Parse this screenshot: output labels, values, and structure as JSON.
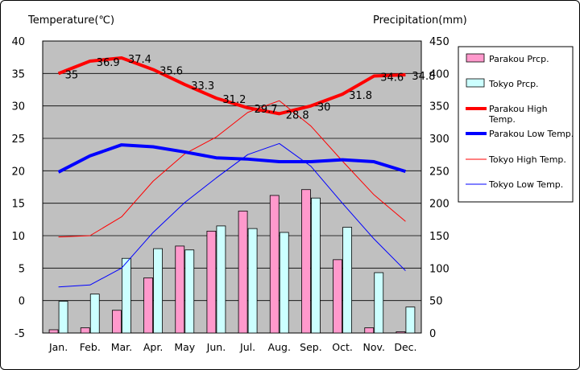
{
  "chart_data": {
    "type": "bar-line-combo",
    "categories": [
      "Jan.",
      "Feb.",
      "Mar.",
      "Apr.",
      "May",
      "Jun.",
      "Jul.",
      "Aug.",
      "Sep.",
      "Oct.",
      "Nov.",
      "Dec."
    ],
    "y_left": {
      "label": "Temperature(℃)",
      "min": -5,
      "max": 40,
      "step": 5
    },
    "y_right": {
      "label": "Precipitation(mm)",
      "min": 0,
      "max": 450,
      "step": 50
    },
    "bar_series": [
      {
        "name": "Parakou Prcp.",
        "axis": "right",
        "color": "#ff99cc",
        "values": [
          5,
          8,
          35,
          85,
          134,
          157,
          188,
          212,
          221,
          113,
          8,
          2
        ]
      },
      {
        "name": "Tokyo Prcp.",
        "axis": "right",
        "color": "#ccffff",
        "values": [
          49,
          60,
          115,
          130,
          128,
          165,
          161,
          155,
          208,
          163,
          93,
          40
        ]
      }
    ],
    "line_series": [
      {
        "name": "Parakou High Temp.",
        "axis": "left",
        "color": "#ff0000",
        "width": "thick",
        "values": [
          35,
          36.9,
          37.4,
          35.6,
          33.3,
          31.2,
          29.7,
          28.8,
          30,
          31.8,
          34.6,
          34.8
        ],
        "labels": [
          "35",
          "36.9",
          "37.4",
          "35.6",
          "33.3",
          "31.2",
          "29.7",
          "28.8",
          "30",
          "31.8",
          "34.6",
          "34.8"
        ]
      },
      {
        "name": "Parakou Low Temp.",
        "axis": "left",
        "color": "#0000ff",
        "width": "thick",
        "values": [
          19.8,
          22.3,
          24.0,
          23.7,
          22.9,
          22.0,
          21.8,
          21.4,
          21.4,
          21.7,
          21.4,
          19.9
        ]
      },
      {
        "name": "Tokyo High Temp.",
        "axis": "left",
        "color": "#ff0000",
        "width": "thin",
        "values": [
          9.8,
          10.0,
          12.9,
          18.4,
          22.6,
          25.2,
          29.0,
          30.8,
          26.9,
          21.5,
          16.3,
          12.2
        ]
      },
      {
        "name": "Tokyo Low Temp.",
        "axis": "left",
        "color": "#0000ff",
        "width": "thin",
        "values": [
          2.1,
          2.4,
          5.0,
          10.5,
          15.1,
          18.9,
          22.5,
          24.2,
          20.7,
          15.0,
          9.5,
          4.6
        ]
      }
    ],
    "legend": {
      "position": "right",
      "items": [
        "Parakou Prcp.",
        "Tokyo Prcp.",
        "Parakou High Temp.",
        "Parakou Low Temp.",
        "Tokyo High Temp.",
        "Tokyo Low Temp."
      ]
    },
    "plot_background": "#c0c0c0",
    "grid": true
  }
}
